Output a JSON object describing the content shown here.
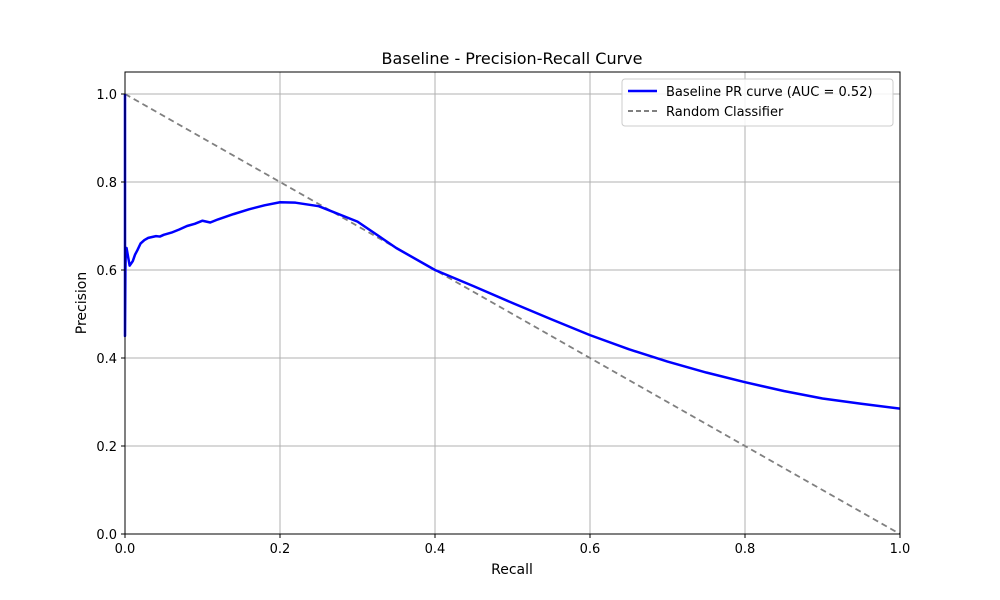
{
  "chart_data": {
    "type": "line",
    "title": "Baseline - Precision-Recall Curve",
    "xlabel": "Recall",
    "ylabel": "Precision",
    "xlim": [
      0,
      1.0
    ],
    "ylim": [
      0,
      1.05
    ],
    "xticks": [
      "0.0",
      "0.2",
      "0.4",
      "0.6",
      "0.8",
      "1.0"
    ],
    "yticks": [
      "0.0",
      "0.2",
      "0.4",
      "0.6",
      "0.8",
      "1.0"
    ],
    "grid": true,
    "legend_position": "top-right",
    "series": [
      {
        "name": "Baseline PR curve (AUC = 0.52)",
        "color": "#0000ff",
        "style": "solid",
        "x": [
          0.0,
          0.0,
          0.0005,
          0.001,
          0.002,
          0.004,
          0.006,
          0.008,
          0.01,
          0.013,
          0.016,
          0.02,
          0.025,
          0.03,
          0.035,
          0.04,
          0.045,
          0.05,
          0.06,
          0.07,
          0.08,
          0.09,
          0.1,
          0.105,
          0.11,
          0.12,
          0.14,
          0.16,
          0.18,
          0.2,
          0.22,
          0.25,
          0.3,
          0.35,
          0.4,
          0.45,
          0.5,
          0.55,
          0.6,
          0.65,
          0.7,
          0.75,
          0.8,
          0.85,
          0.9,
          0.95,
          1.0
        ],
        "y": [
          1.0,
          0.45,
          0.6,
          0.64,
          0.65,
          0.63,
          0.61,
          0.615,
          0.62,
          0.635,
          0.645,
          0.66,
          0.668,
          0.673,
          0.675,
          0.677,
          0.676,
          0.68,
          0.685,
          0.692,
          0.7,
          0.705,
          0.712,
          0.71,
          0.708,
          0.715,
          0.727,
          0.738,
          0.747,
          0.754,
          0.753,
          0.745,
          0.71,
          0.65,
          0.6,
          0.563,
          0.525,
          0.488,
          0.452,
          0.42,
          0.392,
          0.367,
          0.345,
          0.325,
          0.308,
          0.296,
          0.285
        ]
      },
      {
        "name": "Random Classifier",
        "color": "#808080",
        "style": "dashed",
        "x": [
          0.0,
          1.0
        ],
        "y": [
          1.0,
          0.0
        ]
      }
    ]
  }
}
